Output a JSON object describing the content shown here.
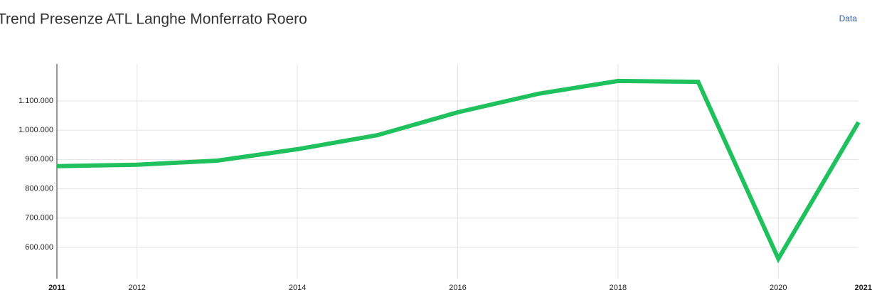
{
  "chart_data": {
    "type": "line",
    "title": "Trend Presenze ATL Langhe Monferrato Roero",
    "link": "Data",
    "x": [
      2011,
      2012,
      2013,
      2014,
      2015,
      2016,
      2017,
      2018,
      2019,
      2020,
      2021
    ],
    "series": [
      {
        "color": "#1fc15c",
        "values": [
          877000,
          882000,
          896000,
          935000,
          983000,
          1061000,
          1124000,
          1168000,
          1165000,
          561000,
          1027000
        ]
      }
    ],
    "xlim": [
      2011,
      2021
    ],
    "xticks": [
      2011,
      2012,
      2014,
      2016,
      2018,
      2020,
      2021
    ],
    "ylim": [
      493000,
      1226000
    ],
    "yticks": [
      {
        "value": 600000,
        "label": "600.000"
      },
      {
        "value": 700000,
        "label": "700.000"
      },
      {
        "value": 800000,
        "label": "800.000"
      },
      {
        "value": 900000,
        "label": "900.000"
      },
      {
        "value": 1000000,
        "label": "1.000.000"
      },
      {
        "value": 1100000,
        "label": "1.100.000"
      }
    ],
    "grid": true
  }
}
